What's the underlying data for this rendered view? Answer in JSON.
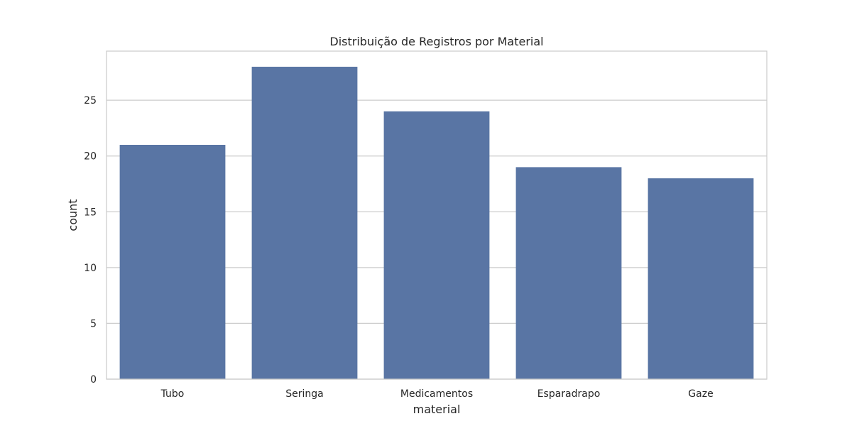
{
  "chart_data": {
    "type": "bar",
    "title": "Distribuição de Registros por Material",
    "xlabel": "material",
    "ylabel": "count",
    "categories": [
      "Tubo",
      "Seringa",
      "Medicamentos",
      "Esparadrapo",
      "Gaze"
    ],
    "values": [
      21,
      28,
      24,
      19,
      18
    ],
    "ylim": [
      0,
      29.4
    ],
    "yticks": [
      0,
      5,
      10,
      15,
      20,
      25
    ],
    "grid": true,
    "grid_axis": "y",
    "legend": "none",
    "colors": {
      "bar": "#5975a4",
      "grid": "#cccccc",
      "frame": "#cccccc",
      "text": "#262626",
      "background": "#ffffff"
    }
  }
}
